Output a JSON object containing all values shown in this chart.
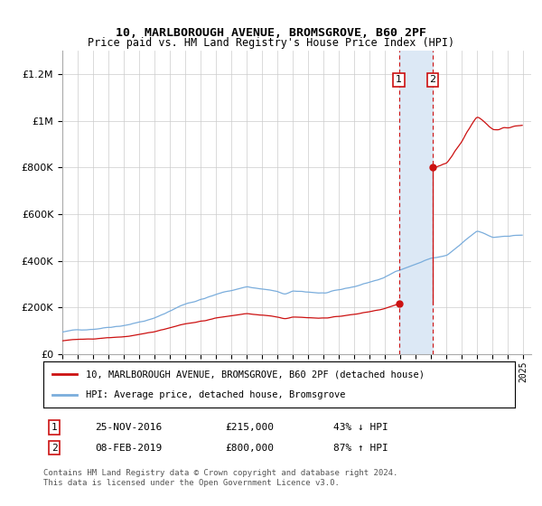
{
  "title": "10, MARLBOROUGH AVENUE, BROMSGROVE, B60 2PF",
  "subtitle": "Price paid vs. HM Land Registry's House Price Index (HPI)",
  "hpi_label": "HPI: Average price, detached house, Bromsgrove",
  "price_label": "10, MARLBOROUGH AVENUE, BROMSGROVE, B60 2PF (detached house)",
  "transaction1": {
    "date": "25-NOV-2016",
    "price": 215000,
    "hpi_relation": "43% ↓ HPI"
  },
  "transaction2": {
    "date": "08-FEB-2019",
    "price": 800000,
    "hpi_relation": "87% ↑ HPI"
  },
  "t1_year": 2016.9,
  "t2_year": 2019.1,
  "hpi_color": "#7aaddc",
  "price_color": "#cc1111",
  "highlight_color": "#dce8f5",
  "footer": "Contains HM Land Registry data © Crown copyright and database right 2024.\nThis data is licensed under the Open Government Licence v3.0."
}
